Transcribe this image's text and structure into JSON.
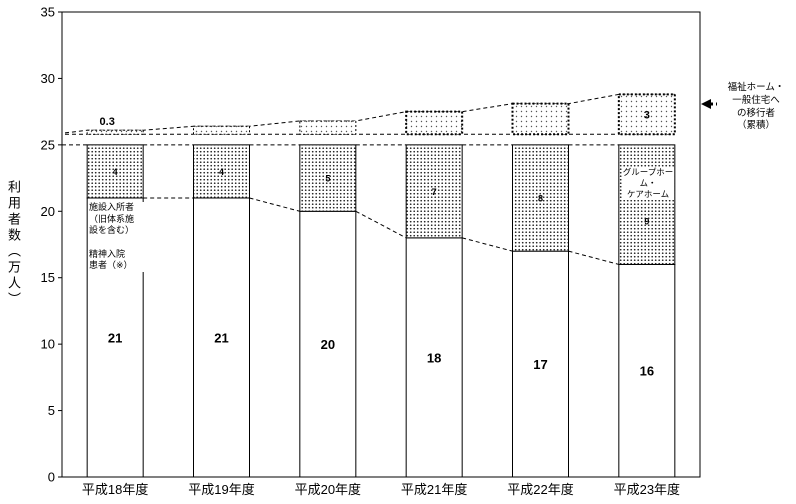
{
  "figure": {
    "ylabel_vertical": "利用者数（万人）",
    "bar1_inner_label": "施設入所者\n（旧体系施\n設を含む）\n\n精神入院\n患者（※）",
    "grouphome_inner_label": "グループホーム・\nケアホーム",
    "annotation": "福祉ホーム・\n一般住宅へ\nの移行者\n（累積）"
  },
  "colors": {
    "foreground": "#000000",
    "background": "#ffffff"
  },
  "chart_data": {
    "type": "bar",
    "stacked": true,
    "title": "",
    "categories": [
      "平成18年度",
      "平成19年度",
      "平成20年度",
      "平成21年度",
      "平成22年度",
      "平成23年度"
    ],
    "series": [
      {
        "name": "施設入所者（旧体系施設を含む）・精神入院患者（※）",
        "style": "white",
        "values": [
          21,
          21,
          20,
          18,
          17,
          16
        ],
        "labels": [
          "21",
          "21",
          "20",
          "18",
          "17",
          "16"
        ]
      },
      {
        "name": "グループホーム・ケアホーム",
        "style": "dotted",
        "values": [
          4,
          4,
          5,
          7,
          8,
          9
        ],
        "labels": [
          "4",
          "4",
          "5",
          "7",
          "8",
          "9"
        ]
      },
      {
        "name": "福祉ホーム・一般住宅への移行者（累積）",
        "style": "dashed-float",
        "base": 25.8,
        "values": [
          0.3,
          0.6,
          1.0,
          1.7,
          2.3,
          3
        ],
        "labels": [
          "0.3",
          "",
          "",
          "",
          "",
          "3"
        ]
      }
    ],
    "xlabel": "",
    "ylabel": "利用者数（万人）",
    "ylim": [
      0,
      35
    ],
    "yticks": [
      0,
      5,
      10,
      15,
      20,
      25,
      30,
      35
    ],
    "grid": false,
    "legend": "none"
  }
}
